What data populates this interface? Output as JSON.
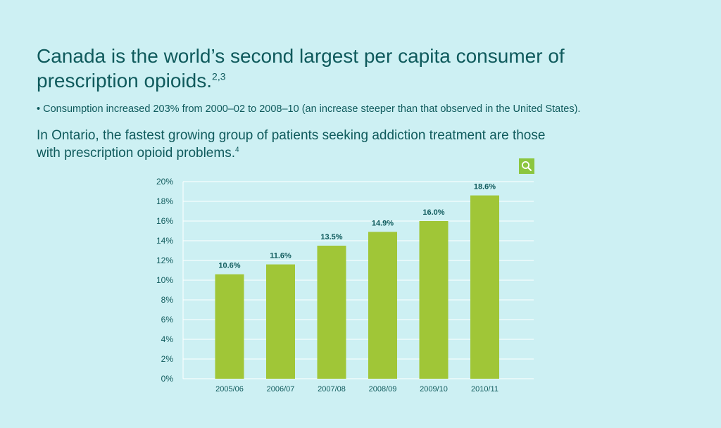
{
  "heading": {
    "text": "Canada is the world’s second largest per capita consumer of prescription opioids.",
    "ref": "2,3"
  },
  "bullet": "• Consumption increased 203% from 2000–02 to 2008–10 (an increase steeper than that observed in the United States).",
  "subheading": {
    "text": "In Ontario, the fastest growing group of patients seeking addiction treatment are those with prescription opioid problems.",
    "ref": "4"
  },
  "zoom": {
    "icon": "magnifier-icon",
    "color": "#8cc63f"
  },
  "chart_data": {
    "type": "bar",
    "categories": [
      "2005/06",
      "2006/07",
      "2007/08",
      "2008/09",
      "2009/10",
      "2010/11"
    ],
    "values": [
      10.6,
      11.6,
      13.5,
      14.9,
      16.0,
      18.6
    ],
    "data_labels": [
      "10.6%",
      "11.6%",
      "13.5%",
      "14.9%",
      "16.0%",
      "18.6%"
    ],
    "yticks": [
      "0%",
      "2%",
      "4%",
      "6%",
      "8%",
      "10%",
      "12%",
      "14%",
      "16%",
      "18%",
      "20%"
    ],
    "ylim": [
      0,
      20
    ],
    "title": "",
    "xlabel": "",
    "ylabel": "",
    "grid": true,
    "bar_color": "#a0c637",
    "grid_color": "#ffffff"
  }
}
